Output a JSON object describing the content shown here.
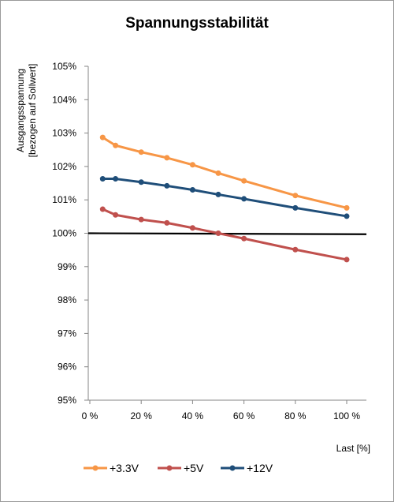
{
  "chart_data": {
    "type": "line",
    "title": "Spannungsstabilität",
    "ylabel_line1": "Ausgangsspannung",
    "ylabel_line2": "[bezogen auf Sollwert]",
    "xlabel": "Last [%]",
    "xlim": [
      0,
      100
    ],
    "ylim": [
      95,
      105
    ],
    "x_ticks": [
      0,
      20,
      40,
      60,
      80,
      100
    ],
    "x_tick_labels": [
      "0 %",
      "20 %",
      "40 %",
      "60 %",
      "80 %",
      "100 %"
    ],
    "y_ticks": [
      95,
      96,
      97,
      98,
      99,
      100,
      101,
      102,
      103,
      104,
      105
    ],
    "y_tick_labels": [
      "95%",
      "96%",
      "97%",
      "98%",
      "99%",
      "100%",
      "101%",
      "102%",
      "103%",
      "104%",
      "105%"
    ],
    "x": [
      5,
      10,
      20,
      30,
      40,
      50,
      60,
      80,
      100
    ],
    "series": [
      {
        "name": "+3.3V",
        "color": "#f79646",
        "values": [
          102.87,
          102.63,
          102.43,
          102.26,
          102.05,
          101.8,
          101.57,
          101.13,
          100.76
        ]
      },
      {
        "name": "+5V",
        "color": "#c0504d",
        "values": [
          100.72,
          100.55,
          100.41,
          100.31,
          100.16,
          100.0,
          99.84,
          99.51,
          99.21
        ]
      },
      {
        "name": "+12V",
        "color": "#1f4e79",
        "values": [
          101.63,
          101.63,
          101.53,
          101.42,
          101.3,
          101.16,
          101.03,
          100.76,
          100.51
        ]
      }
    ],
    "reference_line": {
      "color": "#000000",
      "values": [
        100,
        99.97
      ]
    },
    "legend_position": "bottom-left",
    "grid": false
  }
}
